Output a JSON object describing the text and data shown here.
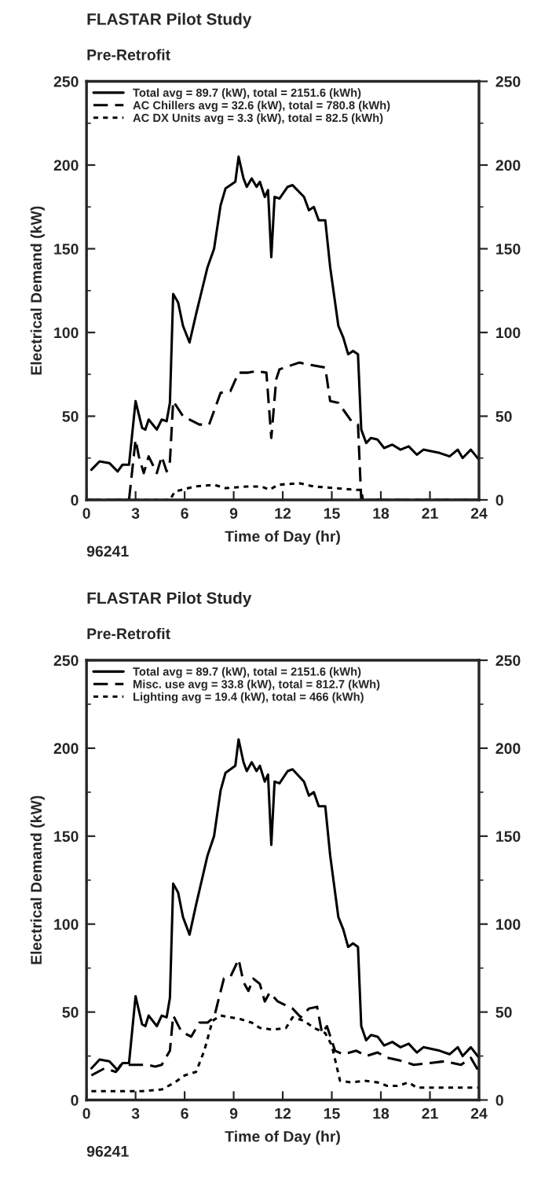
{
  "chart_data": [
    {
      "type": "line",
      "title": "FLASTAR Pilot Study",
      "subtitle": "Pre-Retrofit",
      "xlabel": "Time of Day (hr)",
      "ylabel": "Electrical Demand (kW)",
      "annotations": [
        "96241"
      ],
      "xlim": [
        0,
        24
      ],
      "xticks": [
        0,
        3,
        6,
        9,
        12,
        15,
        18,
        21,
        24
      ],
      "ylim": [
        0,
        250
      ],
      "yticks": [
        0,
        50,
        100,
        150,
        200,
        250
      ],
      "y2lim": [
        0,
        250
      ],
      "y2ticks": [
        0,
        50,
        100,
        150,
        200,
        250
      ],
      "legend": "top left",
      "grid": false,
      "marker": "none",
      "series": [
        {
          "name": "Total avg = 89.7 (kW), total = 2151.6 (kWh)",
          "color": "#000000",
          "line_style": "solid",
          "x": [
            0.3,
            0.8,
            1.4,
            1.9,
            2.2,
            2.6,
            3.0,
            3.4,
            3.6,
            3.8,
            4.3,
            4.6,
            4.9,
            5.1,
            5.3,
            5.6,
            5.9,
            6.3,
            6.7,
            7.0,
            7.4,
            7.8,
            8.2,
            8.5,
            9.1,
            9.3,
            9.6,
            9.8,
            10.1,
            10.4,
            10.6,
            10.9,
            11.1,
            11.3,
            11.5,
            11.8,
            12.3,
            12.6,
            13.3,
            13.6,
            13.9,
            14.2,
            14.6,
            14.9,
            15.4,
            15.7,
            16.0,
            16.3,
            16.6,
            16.8,
            17.1,
            17.4,
            17.8,
            18.2,
            18.7,
            19.2,
            19.7,
            20.2,
            20.6,
            21.6,
            22.2,
            22.7,
            23.0,
            23.5,
            24.0
          ],
          "values": [
            18,
            23,
            22,
            17,
            21,
            21,
            59,
            43,
            42,
            48,
            42,
            48,
            47,
            58,
            123,
            118,
            104,
            94,
            111,
            123,
            139,
            150,
            176,
            186,
            190,
            205,
            192,
            187,
            192,
            187,
            190,
            181,
            185,
            145,
            181,
            180,
            187,
            188,
            181,
            173,
            175,
            167,
            167,
            139,
            104,
            97,
            87,
            89,
            87,
            42,
            34,
            37,
            36,
            31,
            33,
            30,
            32,
            27,
            30,
            28,
            26,
            30,
            25,
            30,
            24
          ]
        },
        {
          "name": "AC Chillers avg = 32.6 (kW), total = 780.8 (kWh)",
          "color": "#000000",
          "line_style": "dashed",
          "x": [
            0.0,
            2.6,
            3.0,
            3.2,
            3.5,
            3.8,
            4.3,
            4.6,
            4.9,
            5.1,
            5.3,
            5.9,
            6.9,
            7.5,
            8.2,
            8.8,
            9.3,
            9.9,
            10.4,
            11.0,
            11.3,
            11.6,
            11.8,
            13.0,
            14.6,
            14.9,
            15.4,
            16.2,
            16.6,
            16.8,
            24.0
          ],
          "values": [
            0,
            0,
            36,
            26,
            16,
            26,
            16,
            26,
            17,
            23,
            59,
            50,
            45,
            45,
            64,
            65,
            76,
            76,
            77,
            76,
            37,
            72,
            78,
            82,
            79,
            59,
            58,
            47,
            45,
            0,
            0
          ]
        },
        {
          "name": "AC DX Units avg = 3.3 (kW), total = 82.5 (kWh)",
          "color": "#000000",
          "line_style": "dotted",
          "x": [
            0.0,
            5.1,
            5.4,
            6.6,
            7.8,
            8.5,
            9.8,
            10.7,
            11.2,
            11.7,
            13.0,
            13.9,
            15.2,
            16.5,
            16.8,
            16.9,
            24.0
          ],
          "values": [
            0,
            0,
            5,
            8,
            9,
            7,
            8,
            8,
            6,
            9,
            10,
            8,
            7,
            6,
            6,
            0,
            0
          ]
        }
      ]
    },
    {
      "type": "line",
      "title": "FLASTAR Pilot Study",
      "subtitle": "Pre-Retrofit",
      "xlabel": "Time of Day (hr)",
      "ylabel": "Electrical Demand (kW)",
      "annotations": [
        "96241"
      ],
      "xlim": [
        0,
        24
      ],
      "xticks": [
        0,
        3,
        6,
        9,
        12,
        15,
        18,
        21,
        24
      ],
      "ylim": [
        0,
        250
      ],
      "yticks": [
        0,
        50,
        100,
        150,
        200,
        250
      ],
      "y2lim": [
        0,
        250
      ],
      "y2ticks": [
        0,
        50,
        100,
        150,
        200,
        250
      ],
      "legend": "top left",
      "grid": false,
      "marker": "none",
      "series": [
        {
          "name": "Total avg = 89.7 (kW), total = 2151.6 (kWh)",
          "color": "#000000",
          "line_style": "solid",
          "x": [
            0.3,
            0.8,
            1.4,
            1.9,
            2.2,
            2.6,
            3.0,
            3.4,
            3.6,
            3.8,
            4.3,
            4.6,
            4.9,
            5.1,
            5.3,
            5.6,
            5.9,
            6.3,
            6.7,
            7.0,
            7.4,
            7.8,
            8.2,
            8.5,
            9.1,
            9.3,
            9.6,
            9.8,
            10.1,
            10.4,
            10.6,
            10.9,
            11.1,
            11.3,
            11.5,
            11.8,
            12.3,
            12.6,
            13.3,
            13.6,
            13.9,
            14.2,
            14.6,
            14.9,
            15.4,
            15.7,
            16.0,
            16.3,
            16.6,
            16.8,
            17.1,
            17.4,
            17.8,
            18.2,
            18.7,
            19.2,
            19.7,
            20.2,
            20.6,
            21.6,
            22.2,
            22.7,
            23.0,
            23.5,
            24.0
          ],
          "values": [
            18,
            23,
            22,
            17,
            21,
            21,
            59,
            43,
            42,
            48,
            42,
            48,
            47,
            58,
            123,
            118,
            104,
            94,
            111,
            123,
            139,
            150,
            176,
            186,
            190,
            205,
            192,
            187,
            192,
            187,
            190,
            181,
            185,
            145,
            181,
            180,
            187,
            188,
            181,
            173,
            175,
            167,
            167,
            139,
            104,
            97,
            87,
            89,
            87,
            42,
            34,
            37,
            36,
            31,
            33,
            30,
            32,
            27,
            30,
            28,
            26,
            30,
            25,
            30,
            24
          ]
        },
        {
          "name": "Misc. use avg = 33.8 (kW), total = 812.7 (kWh)",
          "color": "#000000",
          "line_style": "dashed",
          "x": [
            0.3,
            1.1,
            1.8,
            2.1,
            2.7,
            3.7,
            4.2,
            4.6,
            5.1,
            5.3,
            5.8,
            6.4,
            6.9,
            7.4,
            7.8,
            8.4,
            8.8,
            9.3,
            9.6,
            9.9,
            10.2,
            10.6,
            10.9,
            11.2,
            11.7,
            12.6,
            13.1,
            13.6,
            14.1,
            14.4,
            14.7,
            15.2,
            15.7,
            16.5,
            17.1,
            17.8,
            18.4,
            19.4,
            20.0,
            21.0,
            21.9,
            22.9,
            23.5,
            24.0
          ],
          "values": [
            14,
            18,
            16,
            20,
            20,
            20,
            19,
            20,
            28,
            48,
            39,
            36,
            44,
            44,
            47,
            69,
            70,
            80,
            67,
            62,
            69,
            66,
            56,
            61,
            56,
            52,
            47,
            52,
            53,
            38,
            42,
            28,
            26,
            28,
            25,
            27,
            24,
            22,
            20,
            21,
            22,
            20,
            24,
            16
          ]
        },
        {
          "name": "Lighting avg = 19.4 (kW), total = 466 (kWh)",
          "color": "#000000",
          "line_style": "dotted",
          "x": [
            0.3,
            3.4,
            4.6,
            5.4,
            6.0,
            6.7,
            7.2,
            7.7,
            8.2,
            9.4,
            10.1,
            10.6,
            11.4,
            12.2,
            12.6,
            13.3,
            13.9,
            14.6,
            15.0,
            15.5,
            16.2,
            17.0,
            17.8,
            18.4,
            19.0,
            19.7,
            20.2,
            24.0
          ],
          "values": [
            5,
            5,
            6,
            10,
            14,
            16,
            28,
            45,
            48,
            46,
            44,
            41,
            40,
            41,
            47,
            45,
            41,
            38,
            31,
            11,
            10,
            11,
            10,
            8,
            8,
            10,
            7,
            7
          ]
        }
      ]
    }
  ]
}
